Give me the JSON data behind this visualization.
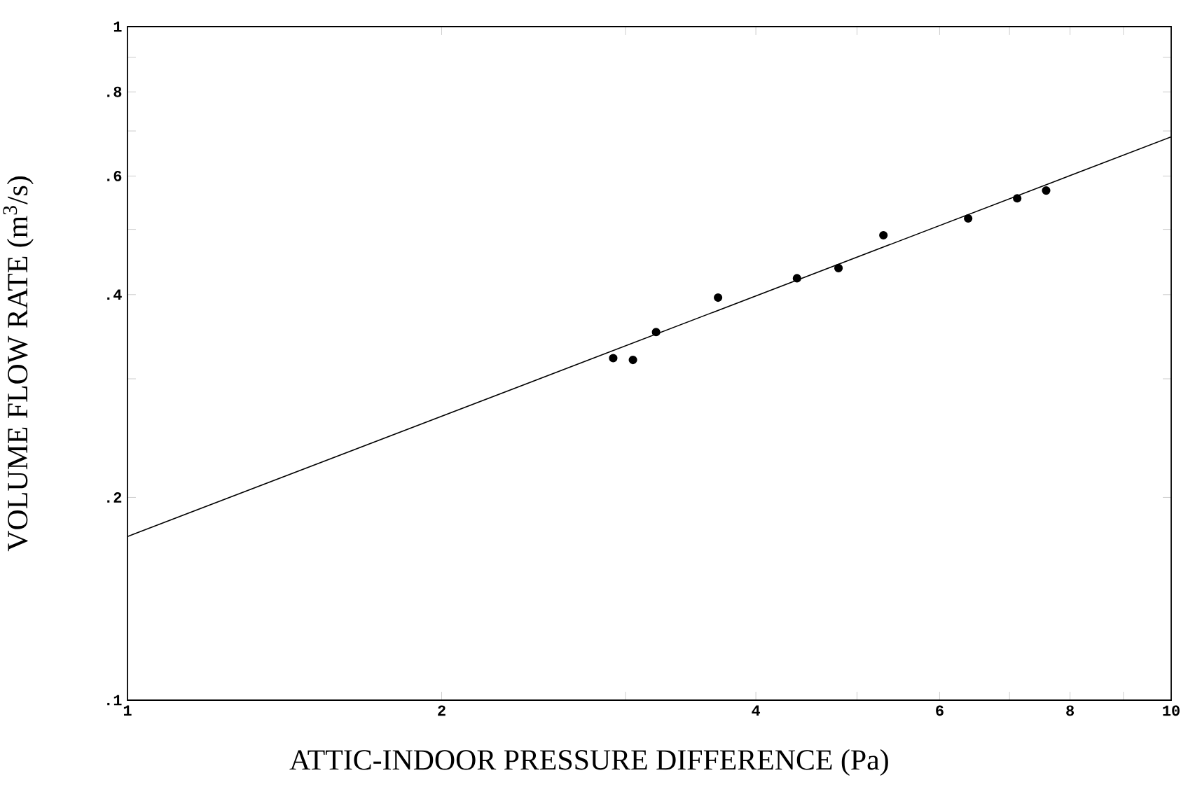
{
  "chart_data": {
    "type": "scatter",
    "xlabel": "ATTIC-INDOOR PRESSURE DIFFERENCE (Pa)",
    "ylabel": "VOLUME FLOW RATE (m$^{3}$/s)",
    "log": "xy",
    "xlim": [
      1,
      10
    ],
    "ylim": [
      0.1,
      1
    ],
    "xticks": [
      1,
      2,
      {
        "value": 3,
        "label": null
      },
      4,
      {
        "value": 5,
        "label": null
      },
      6,
      {
        "value": 7,
        "label": null
      },
      8,
      {
        "value": 9,
        "label": null
      },
      10
    ],
    "yticks": [
      {
        "value": 0.1,
        "label": ".1"
      },
      {
        "value": 0.2,
        "label": ".2"
      },
      {
        "value": 0.3,
        "label": null
      },
      {
        "value": 0.4,
        "label": ".4"
      },
      {
        "value": 0.5,
        "label": null
      },
      {
        "value": 0.6,
        "label": ".6"
      },
      {
        "value": 0.7,
        "label": null
      },
      {
        "value": 0.8,
        "label": ".8"
      },
      {
        "value": 0.9,
        "label": null
      },
      1
    ],
    "series": [
      {
        "marker": "circle",
        "color": "#000000",
        "x": [
          2.92,
          3.05,
          3.21,
          3.68,
          4.38,
          4.8,
          5.3,
          6.39,
          7.12,
          7.59
        ],
        "values": [
          0.322,
          0.32,
          0.352,
          0.396,
          0.423,
          0.438,
          0.49,
          0.519,
          0.556,
          0.571
        ]
      },
      {
        "type": "line",
        "marker": "none",
        "line_style": "solid",
        "color": "#000000",
        "x": [
          1,
          10
        ],
        "values": [
          0.175,
          0.686
        ]
      }
    ]
  }
}
